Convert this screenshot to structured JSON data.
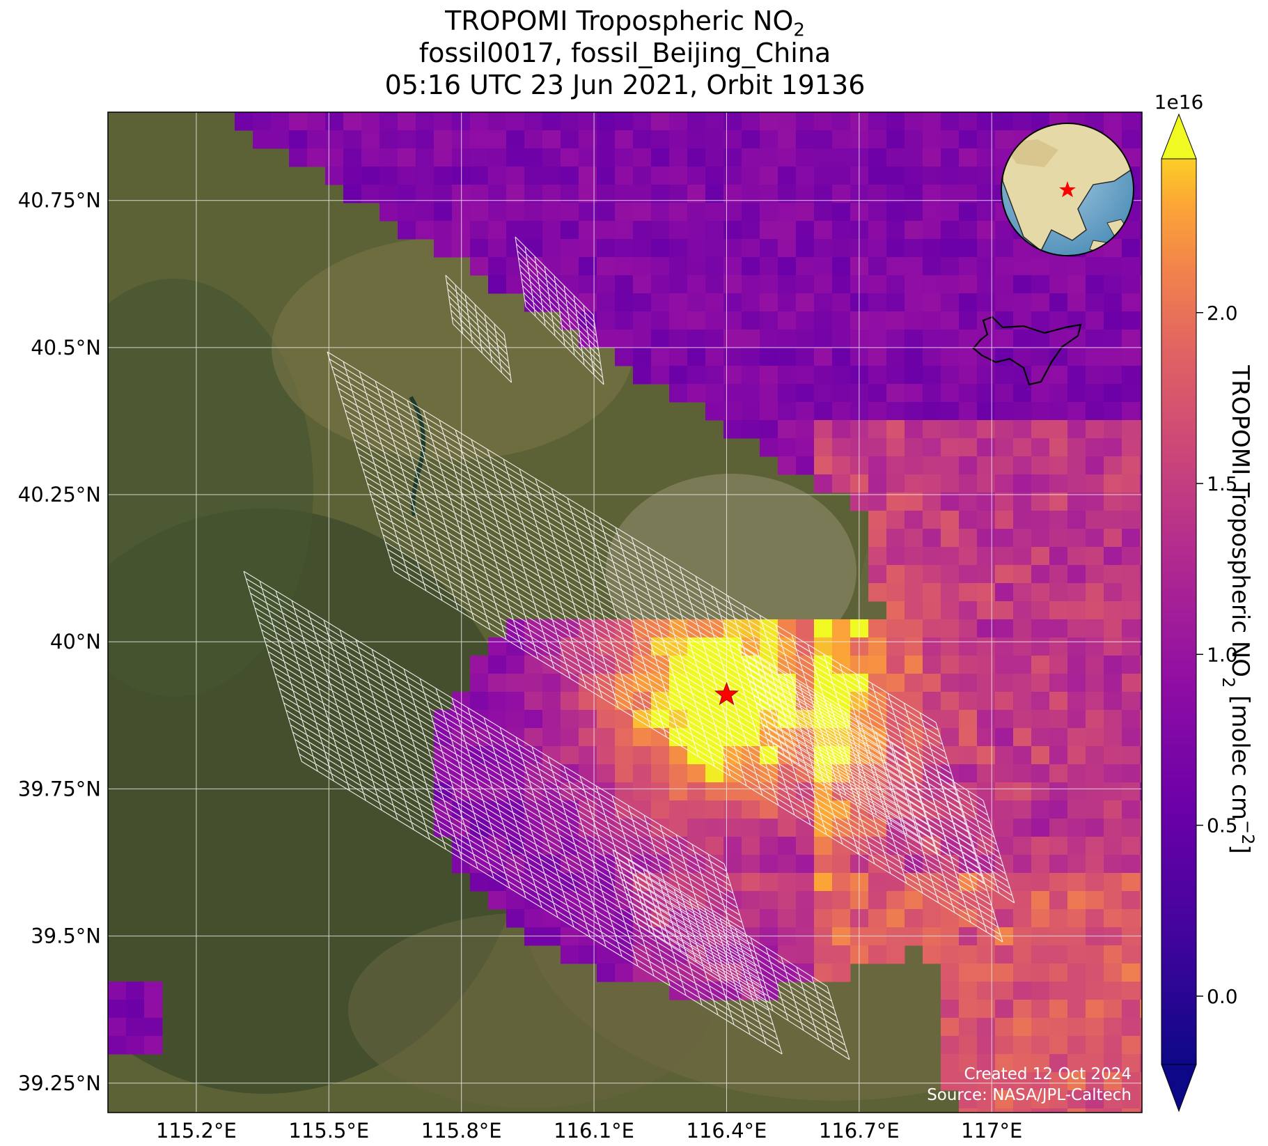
{
  "title": {
    "line1_main": "TROPOMI Tropospheric NO",
    "line1_sub": "2",
    "line2": "fossil0017, fossil_Beijing_China",
    "line3": "05:16 UTC 23 Jun 2021, Orbit 19136"
  },
  "map": {
    "lat_ticks": [
      {
        "value": 40.75,
        "label": "40.75°N"
      },
      {
        "value": 40.5,
        "label": "40.5°N"
      },
      {
        "value": 40.25,
        "label": "40.25°N"
      },
      {
        "value": 40.0,
        "label": "40°N"
      },
      {
        "value": 39.75,
        "label": "39.75°N"
      },
      {
        "value": 39.5,
        "label": "39.5°N"
      },
      {
        "value": 39.25,
        "label": "39.25°N"
      }
    ],
    "lon_ticks": [
      {
        "value": 115.2,
        "label": "115.2°E"
      },
      {
        "value": 115.5,
        "label": "115.5°E"
      },
      {
        "value": 115.8,
        "label": "115.8°E"
      },
      {
        "value": 116.1,
        "label": "116.1°E"
      },
      {
        "value": 116.4,
        "label": "116.4°E"
      },
      {
        "value": 116.7,
        "label": "116.7°E"
      },
      {
        "value": 117.0,
        "label": "117°E"
      }
    ],
    "extent": {
      "lon_min": 115.0,
      "lon_max": 117.34,
      "lat_min": 39.2,
      "lat_max": 40.9
    },
    "target": {
      "lon": 116.4,
      "lat": 39.91,
      "marker": "red-star"
    },
    "credit_line1": "Created 12 Oct 2024",
    "credit_line2": "Source: NASA/JPL-Caltech",
    "inset": "globe-orthographic-east-asia",
    "colors": {
      "target_star": "#ff0000",
      "grid": "#ffffff"
    }
  },
  "colorbar": {
    "multiplier": "1e16",
    "range": [
      -0.2,
      2.45
    ],
    "ticks": [
      {
        "value": 0.0,
        "label": "0.0"
      },
      {
        "value": 0.5,
        "label": "0.5"
      },
      {
        "value": 1.0,
        "label": "1.0"
      },
      {
        "value": 1.5,
        "label": "1.5"
      },
      {
        "value": 2.0,
        "label": "2.0"
      }
    ],
    "label_main": "TROPOMI Tropospheric NO",
    "label_sub": "2",
    "label_unit_pre": " [molec cm",
    "label_unit_sup": "−2",
    "label_unit_post": "]",
    "colormap": "plasma",
    "extend": "both"
  }
}
